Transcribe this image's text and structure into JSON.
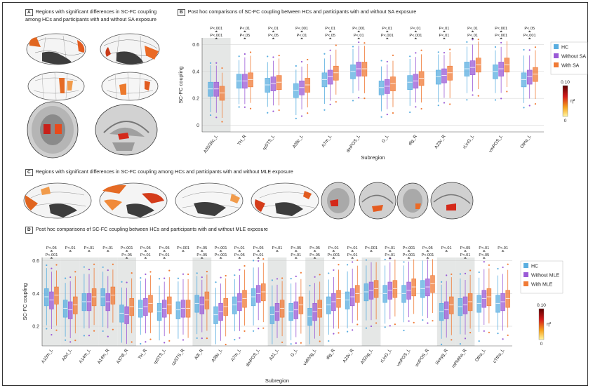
{
  "panels": {
    "A": {
      "label": "A",
      "title": "Regions with significant differences in SC-FC coupling among HCs and participants with and without SA exposure"
    },
    "B": {
      "label": "B",
      "title": "Post hoc comparisons of SC-FC coupling between HCs and participants with and without SA exposure"
    },
    "C": {
      "label": "C",
      "title": "Regions with significant differences in SC-FC coupling among HCs and participants with and without MLE exposure"
    },
    "D": {
      "label": "D",
      "title": "Post hoc comparisons of SC-FC coupling between HCs and participants with and without MLE exposure"
    }
  },
  "colors": {
    "hc": "#5aaee0",
    "without": "#9a5ad6",
    "with": "#f07a35",
    "shade": "#e5e7e6"
  },
  "colorbar": {
    "max": "0.10",
    "min": "0",
    "label": "η²"
  },
  "chart_data": [
    {
      "type": "box",
      "id": "B",
      "title": "Post hoc comparisons of SC-FC coupling between HCs and participants with and without SA exposure",
      "xlabel": "Subregion",
      "ylabel": "SC-FC coupling",
      "ylim": [
        -0.05,
        0.65
      ],
      "yticks": [
        "0",
        "0.2",
        "0.4",
        "0.6"
      ],
      "ytick_values": [
        0,
        0.2,
        0.4,
        0.6
      ],
      "legend": [
        "HC",
        "Without SA",
        "With SA"
      ],
      "categories": [
        "A35/36c_L",
        "TH_R",
        "rpSTS_L",
        "A39c_L",
        "A7m_L",
        "dmPOS_L",
        "G_L",
        "dlg_R",
        "A23v_R",
        "rLinG_L",
        "vmPOS_L",
        "OtHa_L"
      ],
      "shaded": [
        0
      ],
      "series": [
        {
          "name": "HC",
          "medians": [
            0.27,
            0.33,
            0.3,
            0.26,
            0.34,
            0.4,
            0.28,
            0.32,
            0.36,
            0.42,
            0.4,
            0.34
          ]
        },
        {
          "name": "Without SA",
          "medians": [
            0.27,
            0.33,
            0.31,
            0.28,
            0.36,
            0.42,
            0.29,
            0.33,
            0.37,
            0.43,
            0.42,
            0.36
          ]
        },
        {
          "name": "With SA",
          "medians": [
            0.24,
            0.34,
            0.32,
            0.3,
            0.39,
            0.42,
            0.31,
            0.35,
            0.39,
            0.45,
            0.45,
            0.38
          ]
        }
      ],
      "sig": [
        [
          "P<.001",
          "P<.001"
        ],
        [
          "P<.01",
          "P<.05"
        ],
        [
          "P<.01",
          "P<.05"
        ],
        [
          "P<.001",
          "P<.01"
        ],
        [
          "P<.01",
          "P<.05"
        ],
        [
          "P<.001",
          "P<.01"
        ],
        [
          "P<.01",
          "P<.001"
        ],
        [
          "P<.01",
          "P<.001"
        ],
        [
          "P<.01",
          "P<.01"
        ],
        [
          "P<.01",
          "P<.01"
        ],
        [
          "P<.001",
          "P<.001"
        ],
        [
          "P<.05",
          "P<.001"
        ]
      ]
    },
    {
      "type": "box",
      "id": "D",
      "title": "Post hoc comparisons of SC-FC coupling between HCs and participants with and without MLE exposure",
      "xlabel": "Subregion",
      "ylabel": "SC-FC coupling",
      "ylim": [
        0.08,
        0.62
      ],
      "yticks": [
        "0.2",
        "0.4",
        "0.6"
      ],
      "ytick_values": [
        0.2,
        0.4,
        0.6
      ],
      "legend": [
        "HC",
        "Without MLE",
        "With MLE"
      ],
      "categories": [
        "A10m_L",
        "A8vl_L",
        "A14m_L",
        "A14m_R",
        "A37dl_R",
        "TH_R",
        "rpSTS_L",
        "cpSTS_R",
        "A9l_R",
        "A39c_L",
        "A7m_L",
        "dmPOS_L",
        "A31_L",
        "G_L",
        "vIdl/vIg_L",
        "dIg_R",
        "A23v_R",
        "A32sg_L",
        "rLinG_L",
        "vmPOS_L",
        "vmPOS_R",
        "lAmyg_R",
        "mPMtha_R",
        "Otha_L",
        "cTtha_L"
      ],
      "shaded": [
        0,
        1,
        2,
        3,
        4,
        8,
        12,
        14,
        17,
        21,
        22
      ],
      "series": [
        {
          "name": "HC",
          "medians": [
            0.38,
            0.31,
            0.35,
            0.38,
            0.28,
            0.31,
            0.29,
            0.3,
            0.34,
            0.27,
            0.33,
            0.38,
            0.27,
            0.29,
            0.26,
            0.33,
            0.36,
            0.41,
            0.4,
            0.4,
            0.43,
            0.29,
            0.32,
            0.34,
            0.34
          ]
        },
        {
          "name": "Without MLE",
          "medians": [
            0.36,
            0.3,
            0.35,
            0.35,
            0.27,
            0.32,
            0.31,
            0.31,
            0.33,
            0.29,
            0.35,
            0.4,
            0.29,
            0.3,
            0.29,
            0.35,
            0.38,
            0.42,
            0.42,
            0.42,
            0.44,
            0.3,
            0.33,
            0.37,
            0.35
          ]
        },
        {
          "name": "With MLE",
          "medians": [
            0.39,
            0.33,
            0.38,
            0.39,
            0.32,
            0.34,
            0.33,
            0.31,
            0.36,
            0.32,
            0.37,
            0.41,
            0.31,
            0.33,
            0.31,
            0.37,
            0.4,
            0.43,
            0.43,
            0.44,
            0.46,
            0.33,
            0.35,
            0.38,
            0.37
          ]
        }
      ],
      "sig": [
        [
          "P<.05",
          "P<.001"
        ],
        [
          "P<.01",
          ""
        ],
        [
          "P<.01",
          ""
        ],
        [
          "P<.01",
          ""
        ],
        [
          "P<.001",
          "P<.05"
        ],
        [
          "P<.05",
          "P<.01"
        ],
        [
          "P<.05",
          "P<.01"
        ],
        [
          "P<.001",
          ""
        ],
        [
          "P<.05",
          "P<.05"
        ],
        [
          "P<.001",
          "P<.001"
        ],
        [
          "P<.01",
          "P<.05"
        ],
        [
          "P<.05",
          "P<.01"
        ],
        [
          "P<.01",
          ""
        ],
        [
          "P<.05",
          "P<.01"
        ],
        [
          "P<.05",
          "P<.05"
        ],
        [
          "P<.01",
          "P<.001"
        ],
        [
          "P<.01",
          "P<.01"
        ],
        [
          "P<.001",
          ""
        ],
        [
          "P<.01",
          "P<.01"
        ],
        [
          "P<.001",
          "P<.001"
        ],
        [
          "P<.05",
          "P<.001"
        ],
        [
          "P<.01",
          ""
        ],
        [
          "P<.05",
          "P<.01"
        ],
        [
          "P<.01",
          "P<.05"
        ],
        [
          "P<.01",
          ""
        ]
      ]
    }
  ]
}
